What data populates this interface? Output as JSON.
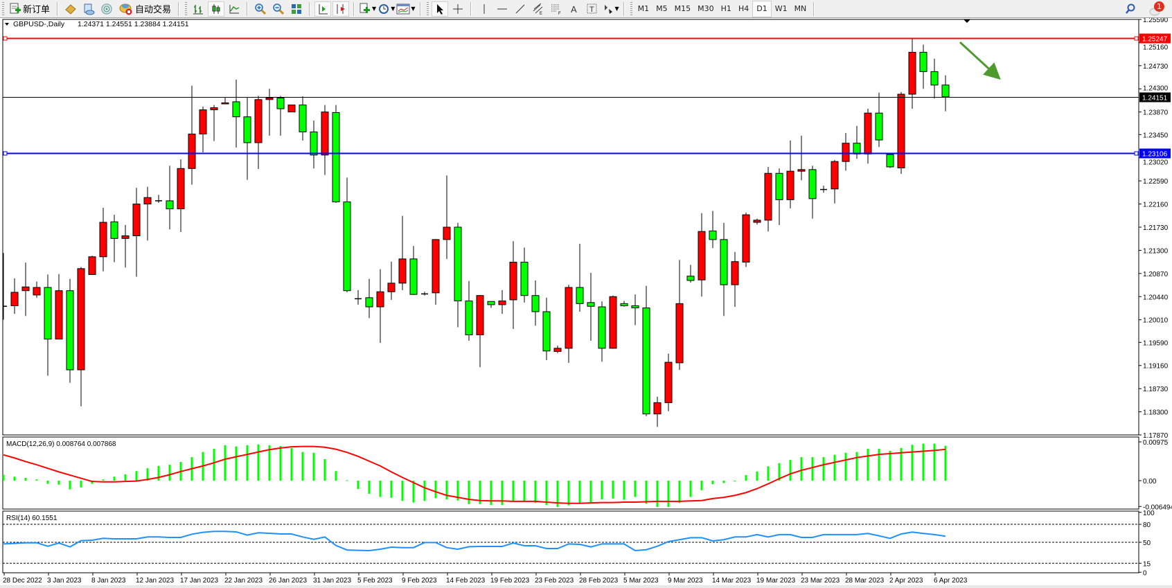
{
  "toolbar": {
    "new_order_label": "新订单",
    "auto_trading_label": "自动交易",
    "timeframes": [
      "M1",
      "M5",
      "M15",
      "M30",
      "H1",
      "H4",
      "D1",
      "W1",
      "MN"
    ],
    "active_timeframe": "D1",
    "notification_count": "1",
    "icons": [
      "new-order-icon",
      "market-watch-icon",
      "data-window-icon",
      "navigator-icon",
      "auto-trading-icon",
      "bar-chart-icon",
      "candlestick-chart-icon",
      "line-chart-icon",
      "zoom-in-icon",
      "zoom-out-icon",
      "tile-windows-icon",
      "auto-scroll-icon",
      "chart-shift-icon",
      "indicators-icon",
      "periods-icon",
      "templates-icon",
      "cursor-icon",
      "crosshair-icon",
      "vertical-line-icon",
      "horizontal-line-icon",
      "trendline-icon",
      "equidistant-channel-icon",
      "fibonacci-icon",
      "text-icon",
      "text-label-icon",
      "arrows-icon",
      "search-icon",
      "notification-icon"
    ]
  },
  "chart_header": {
    "symbol": "GBPUSD-,Daily",
    "ohlc": "1.24371 1.24551 1.23884 1.24151"
  },
  "colors": {
    "bull": "#ff0000",
    "bear": "#00ff00",
    "resistance": "#ff0000",
    "support": "#0000ff",
    "macd_hist": "#00ff00",
    "macd_signal": "#ff0000",
    "rsi": "#1e90ff",
    "arrow": "#4e9a2e"
  },
  "chart_data": {
    "type": "candlestick",
    "price_axis_ticks": [
      "1.25590",
      "1.25160",
      "1.24730",
      "1.24300",
      "1.23870",
      "1.23450",
      "1.23020",
      "1.22590",
      "1.22160",
      "1.21730",
      "1.21300",
      "1.20870",
      "1.20440",
      "1.20010",
      "1.19590",
      "1.19160",
      "1.18730",
      "1.18300",
      "1.17870"
    ],
    "ylim": [
      1.1787,
      1.2559
    ],
    "date_labels": [
      "28 Dec 2022",
      "3 Jan 2023",
      "8 Jan 2023",
      "12 Jan 2023",
      "17 Jan 2023",
      "22 Jan 2023",
      "26 Jan 2023",
      "31 Jan 2023",
      "5 Feb 2023",
      "9 Feb 2023",
      "14 Feb 2023",
      "19 Feb 2023",
      "23 Feb 2023",
      "28 Feb 2023",
      "5 Mar 2023",
      "9 Mar 2023",
      "14 Mar 2023",
      "19 Mar 2023",
      "23 Mar 2023",
      "28 Mar 2023",
      "2 Apr 2023",
      "6 Apr 2023"
    ],
    "horizontal_lines": [
      {
        "price": 1.25247,
        "label": "1.25247",
        "color": "#ff0000"
      },
      {
        "price": 1.23106,
        "label": "1.23106",
        "color": "#0000ff"
      }
    ],
    "bid_line": {
      "price": 1.24151,
      "label": "1.24151"
    },
    "annotation_arrow": "down-right",
    "ohlc": [
      [
        1.2026,
        1.2125,
        1.2001,
        1.2026
      ],
      [
        1.2027,
        1.2078,
        1.2012,
        1.2052
      ],
      [
        1.2055,
        1.2107,
        1.2008,
        1.2062
      ],
      [
        1.2047,
        1.2072,
        1.2042,
        1.2061
      ],
      [
        1.2061,
        1.2085,
        1.1897,
        1.1965
      ],
      [
        1.1965,
        1.2086,
        1.1965,
        1.2055
      ],
      [
        1.2055,
        1.2077,
        1.1884,
        1.1908
      ],
      [
        1.1908,
        1.2099,
        1.184,
        1.2096
      ],
      [
        1.2085,
        1.212,
        1.2085,
        1.2118
      ],
      [
        1.2118,
        1.2209,
        1.2091,
        1.2182
      ],
      [
        1.2183,
        1.2196,
        1.2108,
        1.2152
      ],
      [
        1.2152,
        1.2177,
        1.2098,
        1.2157
      ],
      [
        1.2157,
        1.2246,
        1.2081,
        1.2216
      ],
      [
        1.2216,
        1.2248,
        1.2148,
        1.2228
      ],
      [
        1.2222,
        1.2233,
        1.2218,
        1.2222
      ],
      [
        1.2222,
        1.2287,
        1.2169,
        1.2207
      ],
      [
        1.2207,
        1.2299,
        1.2164,
        1.2282
      ],
      [
        1.2282,
        1.2436,
        1.2252,
        1.2346
      ],
      [
        1.2346,
        1.2397,
        1.2312,
        1.2391
      ],
      [
        1.2391,
        1.24,
        1.2333,
        1.2395
      ],
      [
        1.2402,
        1.2415,
        1.2402,
        1.2404
      ],
      [
        1.2406,
        1.2447,
        1.2321,
        1.2378
      ],
      [
        1.2378,
        1.2415,
        1.2261,
        1.233
      ],
      [
        1.233,
        1.2417,
        1.2281,
        1.241
      ],
      [
        1.241,
        1.243,
        1.2343,
        1.2413
      ],
      [
        1.2413,
        1.2417,
        1.2343,
        1.2393
      ],
      [
        1.2387,
        1.24,
        1.2387,
        1.24
      ],
      [
        1.24,
        1.2416,
        1.2334,
        1.235
      ],
      [
        1.235,
        1.2371,
        1.2282,
        1.2307
      ],
      [
        1.2307,
        1.24,
        1.227,
        1.2387
      ],
      [
        1.2386,
        1.24,
        1.2218,
        1.222
      ],
      [
        1.222,
        1.2265,
        1.2052,
        1.2055
      ],
      [
        1.204,
        1.2056,
        1.2029,
        1.204
      ],
      [
        1.2042,
        1.2077,
        1.2004,
        1.2025
      ],
      [
        1.2025,
        1.2095,
        1.1958,
        1.2053
      ],
      [
        1.2053,
        1.2109,
        1.2038,
        1.2069
      ],
      [
        1.2069,
        1.2194,
        1.2056,
        1.2114
      ],
      [
        1.2114,
        1.2138,
        1.2047,
        1.2048
      ],
      [
        1.2049,
        1.2053,
        1.2046,
        1.2049
      ],
      [
        1.2051,
        1.2151,
        1.2029,
        1.215
      ],
      [
        1.215,
        1.2269,
        1.2114,
        1.2173
      ],
      [
        1.2173,
        1.2181,
        1.1987,
        1.2036
      ],
      [
        1.2036,
        1.2073,
        1.1962,
        1.1973
      ],
      [
        1.1973,
        1.2047,
        1.1913,
        1.2046
      ],
      [
        1.2035,
        1.2035,
        1.2023,
        1.2029
      ],
      [
        1.2029,
        1.2056,
        1.2012,
        1.2036
      ],
      [
        1.2038,
        1.2147,
        1.1984,
        1.2108
      ],
      [
        1.2108,
        1.2135,
        1.2033,
        1.2046
      ],
      [
        1.2046,
        1.2074,
        1.199,
        1.2016
      ],
      [
        1.2016,
        1.2042,
        1.1926,
        1.1943
      ],
      [
        1.1942,
        1.1953,
        1.1939,
        1.1948
      ],
      [
        1.1948,
        1.2066,
        1.1921,
        1.2061
      ],
      [
        1.2061,
        1.2142,
        1.2016,
        1.2031
      ],
      [
        1.2033,
        1.2088,
        1.1962,
        1.2026
      ],
      [
        1.2025,
        1.2035,
        1.1923,
        1.1948
      ],
      [
        1.1948,
        1.2046,
        1.1947,
        1.2044
      ],
      [
        1.2031,
        1.2036,
        1.2025,
        1.2027
      ],
      [
        1.2027,
        1.2048,
        1.1991,
        1.2023
      ],
      [
        1.2023,
        1.2064,
        1.1822,
        1.1826
      ],
      [
        1.1826,
        1.1858,
        1.1802,
        1.1847
      ],
      [
        1.1847,
        1.1938,
        1.1831,
        1.1922
      ],
      [
        1.1921,
        1.2112,
        1.1908,
        1.2031
      ],
      [
        1.2082,
        1.2103,
        1.207,
        1.2074
      ],
      [
        1.2075,
        1.2199,
        1.2044,
        1.2165
      ],
      [
        1.2166,
        1.2203,
        1.2134,
        1.215
      ],
      [
        1.215,
        1.2181,
        1.2008,
        1.2066
      ],
      [
        1.2066,
        1.2127,
        1.2025,
        1.2109
      ],
      [
        1.2108,
        1.22,
        1.2099,
        1.2196
      ],
      [
        1.2182,
        1.2189,
        1.2178,
        1.2186
      ],
      [
        1.2186,
        1.2285,
        1.2165,
        1.2273
      ],
      [
        1.2273,
        1.2282,
        1.2177,
        1.2224
      ],
      [
        1.2224,
        1.2334,
        1.2208,
        1.2277
      ],
      [
        1.2277,
        1.2343,
        1.226,
        1.228
      ],
      [
        1.228,
        1.2287,
        1.2189,
        1.2226
      ],
      [
        1.2243,
        1.225,
        1.2237,
        1.2243
      ],
      [
        1.2244,
        1.2298,
        1.2217,
        1.2295
      ],
      [
        1.2295,
        1.2348,
        1.2278,
        1.2329
      ],
      [
        1.2329,
        1.2361,
        1.23,
        1.2309
      ],
      [
        1.2309,
        1.2393,
        1.2291,
        1.2385
      ],
      [
        1.2385,
        1.2423,
        1.2322,
        1.2335
      ],
      [
        1.2308,
        1.2308,
        1.2283,
        1.2285
      ],
      [
        1.2283,
        1.2424,
        1.2272,
        1.242
      ],
      [
        1.242,
        1.2525,
        1.2393,
        1.2498
      ],
      [
        1.2498,
        1.2512,
        1.243,
        1.2462
      ],
      [
        1.2462,
        1.2486,
        1.2412,
        1.2437
      ],
      [
        1.24371,
        1.24551,
        1.23884,
        1.24151
      ]
    ],
    "macd": {
      "label": "MACD(12,26,9) 0.008764 0.007868",
      "axis_labels": [
        "0.00975",
        "0.00",
        "-0.006494"
      ],
      "ylim": [
        -0.006494,
        0.00975
      ],
      "histogram": [
        0.0015,
        0.001,
        0.0007,
        0.0003,
        -0.0008,
        -0.001,
        -0.0022,
        -0.0017,
        -0.0008,
        0.0003,
        0.001,
        0.0016,
        0.0024,
        0.0031,
        0.0037,
        0.004,
        0.0047,
        0.0059,
        0.0072,
        0.008,
        0.0089,
        0.0086,
        0.0089,
        0.0091,
        0.0089,
        0.0087,
        0.0082,
        0.0072,
        0.007,
        0.0054,
        0.0024,
        0.0001,
        -0.0021,
        -0.0033,
        -0.0041,
        -0.0043,
        -0.0051,
        -0.0055,
        -0.0051,
        -0.0044,
        -0.0047,
        -0.005,
        -0.0059,
        -0.0059,
        -0.0061,
        -0.0061,
        -0.0053,
        -0.0053,
        -0.0056,
        -0.0061,
        -0.0066,
        -0.0062,
        -0.0056,
        -0.0054,
        -0.0047,
        -0.0045,
        -0.0048,
        -0.0041,
        -0.0058,
        -0.0066,
        -0.0066,
        -0.0056,
        -0.0041,
        -0.0024,
        -0.0009,
        -0.0006,
        -0.0001,
        0.0014,
        0.0023,
        0.0036,
        0.0044,
        0.0052,
        0.0059,
        0.0059,
        0.0059,
        0.0065,
        0.007,
        0.0072,
        0.008,
        0.008,
        0.0075,
        0.0082,
        0.009,
        0.0093,
        0.0093,
        0.008764
      ],
      "signal": [
        0.0065,
        0.0057,
        0.0048,
        0.004,
        0.0031,
        0.0022,
        0.0014,
        0.0006,
        -0.0002,
        -0.0003,
        -0.0003,
        -0.0002,
        -0.0001,
        0.0003,
        0.0008,
        0.0015,
        0.0023,
        0.003,
        0.0037,
        0.0045,
        0.0054,
        0.006,
        0.0066,
        0.0072,
        0.0078,
        0.0082,
        0.0085,
        0.0086,
        0.0086,
        0.0084,
        0.0079,
        0.0071,
        0.0061,
        0.0049,
        0.0037,
        0.0022,
        0.0008,
        -0.0005,
        -0.0018,
        -0.0028,
        -0.0037,
        -0.0042,
        -0.0047,
        -0.005,
        -0.0051,
        -0.0051,
        -0.0052,
        -0.0052,
        -0.0052,
        -0.0054,
        -0.0056,
        -0.0057,
        -0.0057,
        -0.0056,
        -0.0055,
        -0.0055,
        -0.0054,
        -0.0054,
        -0.0053,
        -0.0052,
        -0.0052,
        -0.0052,
        -0.0051,
        -0.005,
        -0.0045,
        -0.0042,
        -0.0037,
        -0.003,
        -0.002,
        -0.0008,
        0.0005,
        0.0017,
        0.0026,
        0.0033,
        0.004,
        0.0046,
        0.0052,
        0.0058,
        0.0062,
        0.0066,
        0.0068,
        0.007,
        0.0072,
        0.0074,
        0.0076,
        0.007868
      ]
    },
    "rsi": {
      "label": "RSI(14) 60.1551",
      "axis_labels": [
        "100",
        "80",
        "50",
        "15",
        "0"
      ],
      "levels": [
        80,
        50,
        15
      ],
      "ylim": [
        0,
        100
      ],
      "values": [
        47.3,
        48.1,
        49.2,
        49.2,
        43.4,
        48.8,
        42.3,
        52.7,
        53.5,
        56.6,
        55.8,
        55.8,
        55.8,
        58.9,
        58.9,
        58.1,
        58.1,
        63.5,
        66.6,
        68.2,
        68.2,
        67.4,
        62.0,
        65.9,
        65.1,
        63.9,
        63.9,
        58.9,
        55.0,
        58.9,
        44.6,
        37.2,
        36.5,
        36.1,
        38.4,
        41.9,
        41.1,
        41.1,
        49.6,
        49.6,
        41.1,
        38.4,
        42.6,
        43.0,
        43.0,
        43.0,
        48.8,
        44.2,
        44.2,
        39.6,
        39.6,
        47.3,
        46.5,
        42.3,
        47.3,
        47.3,
        47.3,
        36.1,
        37.6,
        43.4,
        51.2,
        54.3,
        57.7,
        57.7,
        52.3,
        54.3,
        58.9,
        58.9,
        62.8,
        58.9,
        62.8,
        62.8,
        58.1,
        58.1,
        62.8,
        62.8,
        62.8,
        62.8,
        64.7,
        60.8,
        56.6,
        63.9,
        67.0,
        64.7,
        62.8,
        60.1551
      ]
    }
  }
}
